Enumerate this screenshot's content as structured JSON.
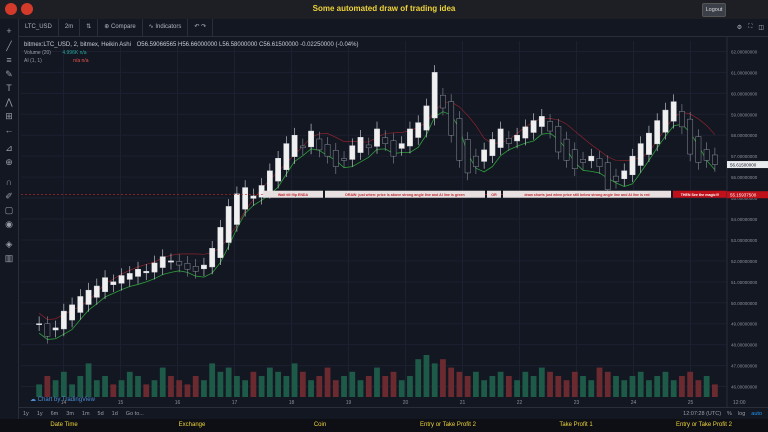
{
  "header": {
    "title": "Some automated draw of trading idea",
    "logout_label": "Logout"
  },
  "toolbar": {
    "symbol": "LTC_USD",
    "interval": "2m",
    "compare_label": "Compare",
    "indicators_label": "Indicators"
  },
  "legend": {
    "main": "bitmex:LTC_USD, 2, bitmex, Heikin Ashi",
    "ohlc": "O56.59066565  H56.66000000  L56.58000000  C56.61500000  -0.02250000 (-0.04%)",
    "volume": "Volume (20)",
    "volume_val": "4.996K  n/a",
    "ai": "AI (1, 1)",
    "ai_val": "n/a  n/a"
  },
  "annotations": {
    "hline_price": "55.15937500",
    "label1": "Wait till flip ENDA",
    "label2": "DRAW: just when: price is above strong angle line and AI line is green",
    "label3": "OR",
    "label4": "draw shorts just when price still below strong angle line and AI line is red",
    "label5": "THEN See the magic!!!"
  },
  "price_axis": {
    "ticks": [
      "62.00000000",
      "61.00000000",
      "60.00000000",
      "59.00000000",
      "58.00000000",
      "57.00000000",
      "56.00000000",
      "55.00000000",
      "54.00000000",
      "53.00000000",
      "52.00000000",
      "51.00000000",
      "50.00000000",
      "49.00000000",
      "48.00000000",
      "47.00000000",
      "46.00000000"
    ],
    "last_price": "56.61500000",
    "last_price2": "56.11500000"
  },
  "time_axis": {
    "ticks": [
      "14",
      "15",
      "16",
      "17",
      "18",
      "19",
      "20",
      "21",
      "22",
      "23",
      "24",
      "25",
      "12:00"
    ]
  },
  "bottombar": {
    "ranges": [
      "1y",
      "1y",
      "6m",
      "3m",
      "1m",
      "5d",
      "1d",
      "Go to..."
    ],
    "time": "12:07:28 (UTC)",
    "pct": "%",
    "log": "log",
    "auto": "auto"
  },
  "watermark": "Chart by TradingView",
  "footer": [
    "Date Time",
    "Exchange",
    "Coin",
    "Entry or Take Profit 2",
    "Take Profit 1",
    "Entry or Take Profit 2"
  ],
  "chart_data": {
    "type": "candlestick",
    "title": "bitmex:LTC_USD, 2, bitmex, Heikin Ashi",
    "ylim": [
      45.5,
      62.5
    ],
    "hline": 55.159375,
    "x_ticks": [
      "14",
      "15",
      "16",
      "17",
      "18",
      "19",
      "20",
      "21",
      "22",
      "23",
      "24",
      "25"
    ],
    "closes": [
      49.0,
      48.4,
      48.8,
      49.6,
      49.9,
      50.3,
      50.6,
      50.8,
      51.2,
      51.0,
      51.3,
      51.4,
      51.6,
      51.5,
      51.9,
      52.2,
      52.0,
      51.8,
      51.6,
      51.5,
      51.8,
      52.6,
      53.6,
      54.6,
      55.2,
      55.5,
      55.1,
      55.6,
      56.3,
      56.9,
      57.6,
      58.0,
      57.4,
      58.2,
      57.3,
      57.0,
      56.5,
      56.8,
      57.5,
      57.9,
      57.4,
      58.3,
      57.6,
      57.0,
      57.6,
      58.3,
      58.6,
      59.4,
      61.0,
      59.3,
      58.0,
      56.8,
      56.2,
      56.5,
      57.3,
      57.8,
      58.3,
      57.6,
      58.0,
      58.4,
      58.7,
      58.9,
      58.2,
      57.2,
      56.8,
      56.4,
      56.7,
      57.0,
      56.5,
      55.4,
      55.8,
      56.3,
      57.0,
      57.6,
      58.1,
      58.7,
      59.2,
      59.6,
      58.4,
      57.1,
      56.7,
      56.8,
      56.6
    ],
    "volumes": [
      0.3,
      0.5,
      0.4,
      0.6,
      0.3,
      0.5,
      0.8,
      0.4,
      0.5,
      0.3,
      0.4,
      0.6,
      0.5,
      0.3,
      0.4,
      0.7,
      0.5,
      0.4,
      0.3,
      0.5,
      0.4,
      0.8,
      0.6,
      0.7,
      0.5,
      0.4,
      0.6,
      0.5,
      0.7,
      0.6,
      0.5,
      0.8,
      0.6,
      0.4,
      0.5,
      0.7,
      0.4,
      0.5,
      0.6,
      0.4,
      0.5,
      0.7,
      0.5,
      0.6,
      0.4,
      0.5,
      0.9,
      1.0,
      0.8,
      0.9,
      0.7,
      0.6,
      0.5,
      0.6,
      0.4,
      0.5,
      0.6,
      0.5,
      0.4,
      0.6,
      0.5,
      0.7,
      0.6,
      0.5,
      0.4,
      0.6,
      0.5,
      0.4,
      0.7,
      0.6,
      0.5,
      0.4,
      0.5,
      0.6,
      0.4,
      0.5,
      0.6,
      0.4,
      0.5,
      0.6,
      0.4,
      0.5,
      0.3
    ]
  }
}
